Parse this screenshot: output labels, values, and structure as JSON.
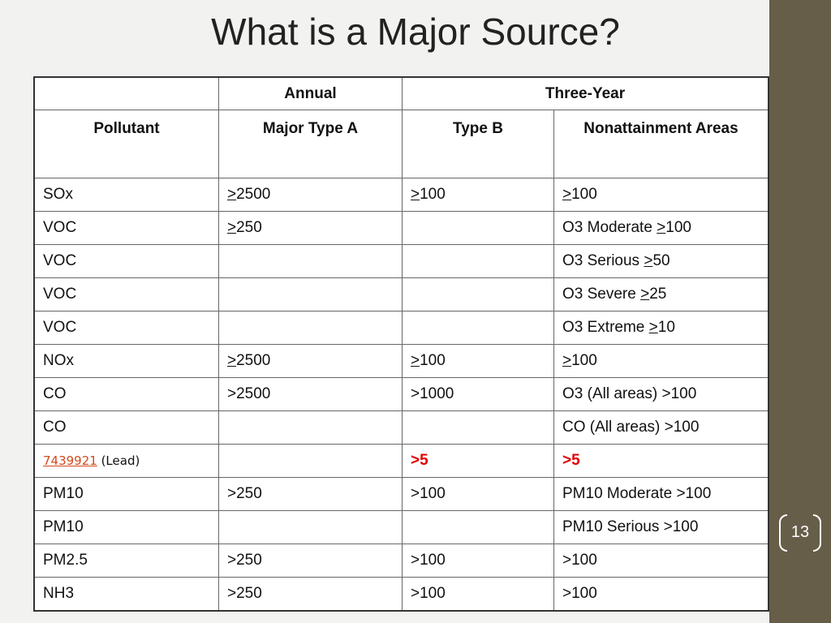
{
  "slide": {
    "title": "What is a Major Source?",
    "page_number": "13",
    "accent_color": "#675e49"
  },
  "table": {
    "group_headers": {
      "blank": "",
      "annual": "Annual",
      "three_year": "Three-Year"
    },
    "column_headers": {
      "pollutant": "Pollutant",
      "major_type_a": "Major Type A",
      "type_b": "Type B",
      "nonattainment": "Nonattainment Areas"
    },
    "rows": [
      {
        "pollutant": "SOx",
        "a_sym": ">",
        "a_num": "2500",
        "b_sym": ">",
        "b_num": "100",
        "n_pre": "",
        "n_sym": ">",
        "n_num": "100"
      },
      {
        "pollutant": "VOC",
        "a_sym": ">",
        "a_num": "250",
        "b_sym": "",
        "b_num": "",
        "n_pre": "O3 Moderate ",
        "n_sym": ">",
        "n_num": "100"
      },
      {
        "pollutant": "VOC",
        "a_sym": "",
        "a_num": "",
        "b_sym": "",
        "b_num": "",
        "n_pre": "O3 Serious ",
        "n_sym": ">",
        "n_num": "50"
      },
      {
        "pollutant": "VOC",
        "a_sym": "",
        "a_num": "",
        "b_sym": "",
        "b_num": "",
        "n_pre": "O3 Severe ",
        "n_sym": ">",
        "n_num": "25"
      },
      {
        "pollutant": "VOC",
        "a_sym": "",
        "a_num": "",
        "b_sym": "",
        "b_num": "",
        "n_pre": "O3 Extreme ",
        "n_sym": ">",
        "n_num": "10"
      },
      {
        "pollutant": "NOx",
        "a_sym": ">",
        "a_num": "2500",
        "b_sym": ">",
        "b_num": "100",
        "n_pre": "",
        "n_sym": ">",
        "n_num": "100"
      },
      {
        "pollutant": "CO",
        "type_a": ">2500",
        "type_b": ">1000",
        "nonattainment": "O3 (All areas) >100"
      },
      {
        "pollutant": "CO",
        "type_a": "",
        "type_b": "",
        "nonattainment": "CO (All areas) >100"
      },
      {
        "pollutant_link": "7439921",
        "pollutant_note": " (Lead)",
        "type_a": "",
        "type_b": ">5",
        "nonattainment": ">5"
      },
      {
        "pollutant": "PM10",
        "type_a": ">250",
        "type_b": ">100",
        "nonattainment": "PM10 Moderate >100"
      },
      {
        "pollutant": "PM10",
        "type_a": "",
        "type_b": "",
        "nonattainment": "PM10 Serious >100"
      },
      {
        "pollutant": "PM2.5",
        "type_a": ">250",
        "type_b": ">100",
        "nonattainment": ">100"
      },
      {
        "pollutant": "NH3",
        "type_a": ">250",
        "type_b": ">100",
        "nonattainment": ">100"
      }
    ]
  }
}
